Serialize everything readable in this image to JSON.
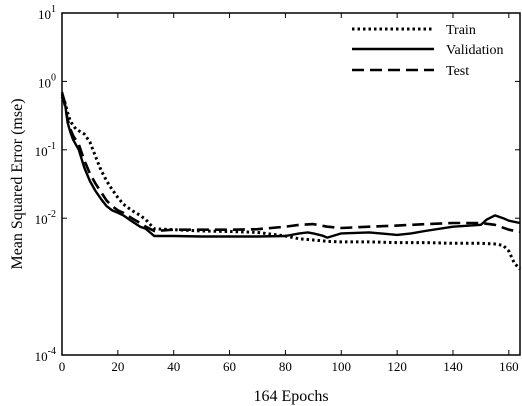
{
  "chart_data": {
    "type": "line",
    "title": "",
    "xlabel": "164 Epochs",
    "ylabel": "Mean Squared Error (mse)",
    "xlim": [
      0,
      164
    ],
    "ylim": [
      0.0001,
      10
    ],
    "yscale": "log",
    "grid": false,
    "legend": "top-right",
    "x_ticks": [
      {
        "value": 0,
        "label": "0"
      },
      {
        "value": 20,
        "label": "20"
      },
      {
        "value": 40,
        "label": "40"
      },
      {
        "value": 60,
        "label": "60"
      },
      {
        "value": 80,
        "label": "80"
      },
      {
        "value": 100,
        "label": "100"
      },
      {
        "value": 120,
        "label": "120"
      },
      {
        "value": 140,
        "label": "140"
      },
      {
        "value": 160,
        "label": "160"
      }
    ],
    "y_ticks": [
      {
        "value": 0.0001,
        "base": "10",
        "exp": "-4"
      },
      {
        "value": 0.01,
        "base": "10",
        "exp": "-2"
      },
      {
        "value": 0.1,
        "base": "10",
        "exp": "-1"
      },
      {
        "value": 1,
        "base": "10",
        "exp": "0"
      },
      {
        "value": 10,
        "base": "10",
        "exp": "1"
      }
    ],
    "series": [
      {
        "name": "Train",
        "style": "dotted",
        "x": [
          0,
          1,
          2,
          3,
          5,
          8,
          10,
          12,
          14,
          16,
          18,
          20,
          22,
          25,
          28,
          30,
          33,
          40,
          50,
          60,
          70,
          80,
          85,
          90,
          95,
          100,
          110,
          120,
          130,
          140,
          150,
          155,
          158,
          160,
          162,
          164
        ],
        "y": [
          0.6,
          0.5,
          0.35,
          0.26,
          0.2,
          0.17,
          0.13,
          0.08,
          0.05,
          0.035,
          0.026,
          0.02,
          0.016,
          0.013,
          0.011,
          0.0095,
          0.007,
          0.0068,
          0.0065,
          0.0064,
          0.0062,
          0.0055,
          0.005,
          0.0048,
          0.0046,
          0.0045,
          0.0045,
          0.0044,
          0.0044,
          0.0043,
          0.0043,
          0.0042,
          0.004,
          0.0033,
          0.0022,
          0.0018
        ]
      },
      {
        "name": "Validation",
        "style": "solid",
        "x": [
          0,
          1,
          2,
          3,
          4,
          6,
          8,
          10,
          12,
          14,
          16,
          18,
          20,
          22,
          25,
          28,
          30,
          33,
          40,
          50,
          60,
          70,
          80,
          85,
          88,
          90,
          93,
          95,
          100,
          110,
          120,
          125,
          130,
          140,
          150,
          152,
          155,
          158,
          160,
          164
        ],
        "y": [
          0.7,
          0.5,
          0.25,
          0.18,
          0.14,
          0.1,
          0.055,
          0.035,
          0.025,
          0.019,
          0.015,
          0.013,
          0.012,
          0.011,
          0.009,
          0.0075,
          0.007,
          0.0055,
          0.0055,
          0.0054,
          0.0054,
          0.0054,
          0.0055,
          0.006,
          0.0062,
          0.006,
          0.0056,
          0.0052,
          0.006,
          0.0062,
          0.0057,
          0.006,
          0.0065,
          0.0075,
          0.008,
          0.0095,
          0.011,
          0.01,
          0.0092,
          0.0085
        ]
      },
      {
        "name": "Test",
        "style": "dashed",
        "x": [
          0,
          1,
          2,
          3,
          4,
          6,
          8,
          10,
          12,
          14,
          16,
          18,
          20,
          22,
          25,
          28,
          30,
          33,
          40,
          50,
          60,
          70,
          80,
          85,
          90,
          95,
          100,
          110,
          120,
          130,
          140,
          150,
          155,
          160,
          164
        ],
        "y": [
          0.65,
          0.45,
          0.28,
          0.2,
          0.16,
          0.12,
          0.07,
          0.045,
          0.032,
          0.024,
          0.018,
          0.015,
          0.013,
          0.012,
          0.01,
          0.0085,
          0.0075,
          0.0065,
          0.0068,
          0.0068,
          0.0068,
          0.0069,
          0.0075,
          0.008,
          0.0082,
          0.0075,
          0.0072,
          0.0075,
          0.0078,
          0.0082,
          0.0085,
          0.0085,
          0.008,
          0.0068,
          0.0063
        ]
      }
    ]
  }
}
